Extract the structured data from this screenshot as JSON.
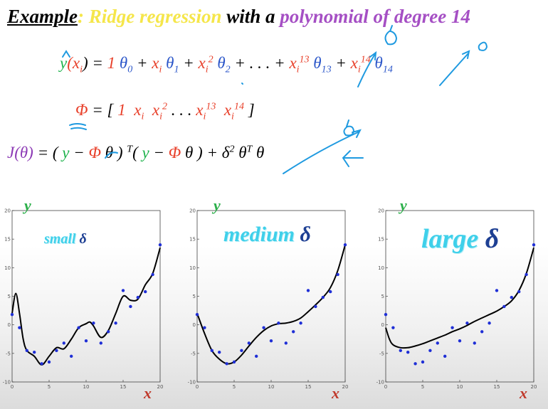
{
  "title": {
    "part1": "Example",
    "colon": ":",
    "part2": " Ridge regression",
    "part3": " with a ",
    "part4": "polynomial of degree 14"
  },
  "equations": {
    "model": {
      "lhs_y": "y",
      "lhs_x": "(x",
      "lhs_i": "i",
      "lhs_end": ") = ",
      "rhs": [
        "1",
        " θ",
        "0",
        " + ",
        "x",
        "i",
        " θ",
        "1",
        " + ",
        "x",
        "i",
        "2",
        " θ",
        "2",
        " + . . . + ",
        "x",
        "i",
        "13",
        " θ",
        "13",
        " + ",
        "x",
        "i",
        "14",
        " θ",
        "14"
      ]
    },
    "phi": {
      "phi": "Φ",
      "eq": " = [ ",
      "one": "1",
      "x1": "x",
      "x1i": "i",
      "x2": "x",
      "x2i": "i",
      "x2p": "2",
      "dots": " . . . ",
      "x13": "x",
      "x13i": "i",
      "x13p": "13",
      "x14": "x",
      "x14i": "i",
      "x14p": "14",
      "close": " ]"
    },
    "cost": {
      "J": "J",
      "theta": "(θ)",
      "eq": " = ( ",
      "y1": "y",
      "minus1": " − ",
      "phi1": "Φ",
      "th1": " θ ) ",
      "T1": "T",
      "open2": "( ",
      "y2": "y",
      "minus2": " − ",
      "phi2": "Φ",
      "th2": " θ ) + ",
      "delta": "δ",
      "dp": "2",
      "th3": " θ",
      "T2": "T",
      "th4": " θ"
    }
  },
  "plots": [
    {
      "label_prefix": "small ",
      "label_delta": "δ",
      "ylabel": "y",
      "xlabel": "x"
    },
    {
      "label_prefix": "medium ",
      "label_delta": "δ",
      "ylabel": "y",
      "xlabel": "x"
    },
    {
      "label_prefix": "large ",
      "label_delta": "δ",
      "ylabel": "y",
      "xlabel": "x"
    }
  ],
  "chart_data": [
    {
      "type": "scatter",
      "title": "small δ",
      "xlabel": "x",
      "ylabel": "y",
      "xlim": [
        0,
        20
      ],
      "ylim": [
        -10,
        20
      ],
      "x_ticks": [
        0,
        5,
        10,
        15,
        20
      ],
      "y_ticks": [
        -10,
        -5,
        0,
        5,
        10,
        15,
        20
      ],
      "points": {
        "x": [
          0,
          1,
          2,
          3,
          4,
          5,
          6,
          7,
          8,
          9,
          10,
          11,
          12,
          13,
          14,
          15,
          16,
          17,
          18,
          19,
          20
        ],
        "y": [
          1.8,
          -0.5,
          -4.5,
          -4.8,
          -6.8,
          -6.5,
          -4.5,
          -3.2,
          -5.5,
          -0.5,
          -2.8,
          0.3,
          -3.2,
          -1.2,
          0.3,
          6,
          3.2,
          4.8,
          5.8,
          8.8,
          14
        ]
      },
      "fit": {
        "x": [
          0,
          0.5,
          1,
          1.5,
          2,
          3,
          4,
          5,
          6,
          7,
          8,
          9,
          10,
          10.5,
          11,
          12,
          13,
          14,
          15,
          16,
          17,
          18,
          19,
          20
        ],
        "y": [
          2,
          5.5,
          2,
          -2.5,
          -4.5,
          -5.5,
          -7,
          -5.5,
          -4,
          -4.2,
          -2.5,
          -0.5,
          0.2,
          0.5,
          -0.2,
          -2.2,
          -1,
          2,
          5,
          4.3,
          4.5,
          7,
          9,
          13.5
        ]
      }
    },
    {
      "type": "scatter",
      "title": "medium δ",
      "xlabel": "x",
      "ylabel": "y",
      "xlim": [
        0,
        20
      ],
      "ylim": [
        -10,
        20
      ],
      "x_ticks": [
        0,
        5,
        10,
        15,
        20
      ],
      "y_ticks": [
        -10,
        -5,
        0,
        5,
        10,
        15,
        20
      ],
      "points": {
        "x": [
          0,
          1,
          2,
          3,
          4,
          5,
          6,
          7,
          8,
          9,
          10,
          11,
          12,
          13,
          14,
          15,
          16,
          17,
          18,
          19,
          20
        ],
        "y": [
          1.8,
          -0.5,
          -4.5,
          -4.8,
          -6.8,
          -6.5,
          -4.5,
          -3.2,
          -5.5,
          -0.5,
          -2.8,
          0.3,
          -3.2,
          -1.2,
          0.3,
          6,
          3.2,
          4.8,
          5.8,
          8.8,
          14
        ]
      },
      "fit": {
        "x": [
          0,
          1,
          2,
          3,
          4,
          5,
          6,
          7,
          8,
          9,
          10,
          11,
          12,
          13,
          14,
          15,
          16,
          17,
          18,
          19,
          20
        ],
        "y": [
          2,
          -1.5,
          -4.5,
          -6,
          -6.8,
          -6.5,
          -5.3,
          -3.7,
          -2.2,
          -1,
          -0.2,
          0.2,
          0.3,
          0.6,
          1.2,
          2.3,
          3.5,
          4.8,
          6.5,
          9.5,
          14
        ]
      }
    },
    {
      "type": "scatter",
      "title": "large δ",
      "xlabel": "x",
      "ylabel": "y",
      "xlim": [
        0,
        20
      ],
      "ylim": [
        -10,
        20
      ],
      "x_ticks": [
        0,
        5,
        10,
        15,
        20
      ],
      "y_ticks": [
        -10,
        -5,
        0,
        5,
        10,
        15,
        20
      ],
      "points": {
        "x": [
          0,
          1,
          2,
          3,
          4,
          5,
          6,
          7,
          8,
          9,
          10,
          11,
          12,
          13,
          14,
          15,
          16,
          17,
          18,
          19,
          20
        ],
        "y": [
          1.8,
          -0.5,
          -4.5,
          -4.8,
          -6.8,
          -6.5,
          -4.5,
          -3.2,
          -5.5,
          -0.5,
          -2.8,
          0.3,
          -3.2,
          -1.2,
          0.3,
          6,
          3.2,
          4.8,
          5.8,
          8.8,
          14
        ]
      },
      "fit": {
        "x": [
          0,
          0.5,
          1,
          2,
          3,
          4,
          5,
          6,
          7,
          8,
          9,
          10,
          11,
          12,
          13,
          14,
          15,
          16,
          17,
          18,
          19,
          20
        ],
        "y": [
          -0.5,
          -2.5,
          -3.5,
          -4,
          -4,
          -3.7,
          -3.3,
          -2.8,
          -2.3,
          -1.8,
          -1.2,
          -0.7,
          -0.1,
          0.6,
          1.2,
          1.8,
          2.4,
          3.2,
          4.2,
          6,
          9,
          13.5
        ]
      }
    }
  ],
  "colors": {
    "points": "#1f2fd6",
    "fit": "#000000",
    "ink": "#1f9ae0",
    "delta_label": "#3fd0ea"
  }
}
